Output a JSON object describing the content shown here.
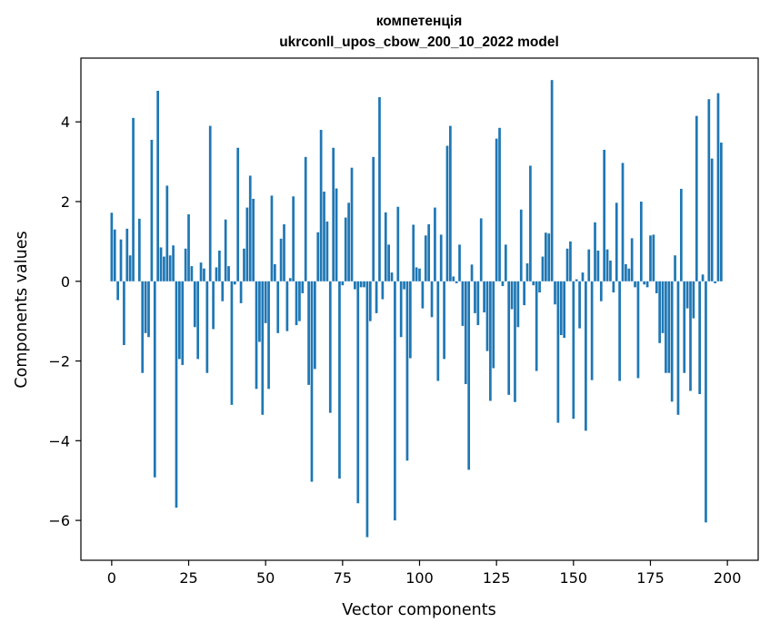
{
  "chart_data": {
    "type": "bar",
    "title": "компетенція",
    "subtitle": "ukrconll_upos_cbow_200_10_2022 model",
    "xlabel": "Vector components",
    "ylabel": "Components values",
    "xlim": [
      -10,
      210
    ],
    "ylim": [
      -7,
      5.6
    ],
    "xticks": [
      0,
      25,
      50,
      75,
      100,
      125,
      150,
      175,
      200
    ],
    "yticks": [
      -6,
      -4,
      -2,
      0,
      2,
      4
    ],
    "xtick_labels": [
      "0",
      "25",
      "50",
      "75",
      "100",
      "125",
      "150",
      "175",
      "200"
    ],
    "ytick_labels": [
      "−6",
      "−4",
      "−2",
      "0",
      "2",
      "4"
    ],
    "bar_color": "#1f77b4",
    "grid": false,
    "values": [
      1.72,
      1.3,
      -0.47,
      1.05,
      -1.6,
      1.32,
      0.65,
      4.1,
      0.0,
      1.57,
      -2.3,
      -1.3,
      -1.4,
      3.55,
      -4.92,
      4.78,
      0.85,
      0.62,
      2.4,
      0.65,
      0.9,
      -5.68,
      -1.95,
      -2.1,
      0.82,
      1.68,
      0.38,
      -1.15,
      -1.95,
      0.47,
      0.32,
      -2.3,
      3.9,
      -1.2,
      0.35,
      0.77,
      -0.5,
      1.55,
      0.38,
      -3.1,
      -0.08,
      3.35,
      -0.55,
      0.82,
      1.85,
      2.65,
      2.07,
      -2.7,
      -1.52,
      -3.35,
      -1.05,
      -2.7,
      2.15,
      0.43,
      -1.3,
      1.07,
      1.43,
      -1.25,
      0.08,
      2.13,
      -1.1,
      -1.0,
      -0.3,
      3.12,
      -2.6,
      -5.03,
      -2.2,
      1.23,
      3.8,
      2.25,
      1.5,
      -3.3,
      3.35,
      2.33,
      -4.95,
      -0.1,
      1.6,
      1.97,
      2.85,
      -0.2,
      -5.57,
      -0.15,
      -0.15,
      -6.42,
      -1.0,
      3.12,
      -0.8,
      4.62,
      -0.45,
      1.73,
      0.92,
      0.22,
      -6.0,
      1.87,
      -1.4,
      -0.2,
      -4.5,
      -1.93,
      1.42,
      0.35,
      0.32,
      -0.68,
      1.15,
      1.43,
      -0.9,
      1.85,
      -2.5,
      1.17,
      -1.95,
      3.4,
      3.9,
      0.12,
      -0.05,
      0.92,
      -1.12,
      -2.58,
      -4.73,
      0.42,
      -0.8,
      -1.1,
      1.58,
      -0.78,
      -1.75,
      -3.0,
      -2.18,
      3.58,
      3.85,
      -0.12,
      0.92,
      -2.85,
      -0.7,
      -3.03,
      -1.15,
      1.8,
      -0.6,
      0.45,
      2.9,
      -0.1,
      -2.25,
      -0.28,
      0.62,
      1.22,
      1.2,
      5.05,
      -0.58,
      -3.55,
      -1.35,
      -1.42,
      0.82,
      1.0,
      -3.45,
      0.05,
      -1.18,
      0.22,
      -3.75,
      0.8,
      -2.48,
      1.48,
      0.77,
      -0.5,
      3.3,
      0.8,
      0.52,
      -0.28,
      1.97,
      -2.5,
      2.97,
      0.43,
      0.32,
      1.08,
      -0.15,
      -2.43,
      2.0,
      -0.08,
      -0.15,
      1.15,
      1.17,
      -0.3,
      -1.55,
      -1.3,
      -2.3,
      -2.3,
      -3.02,
      0.65,
      -3.35,
      2.32,
      -2.3,
      -0.68,
      -2.75,
      -0.93,
      4.15,
      -2.83,
      0.17,
      -6.05,
      4.57,
      3.08,
      -0.05,
      4.72,
      3.48,
      0.0
    ]
  }
}
